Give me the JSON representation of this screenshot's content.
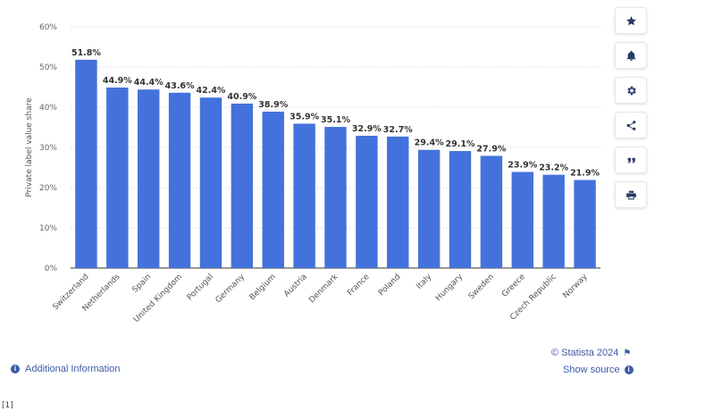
{
  "chart_data": {
    "type": "bar",
    "ylabel": "Private label value share",
    "xlabel": "",
    "ylim": [
      0,
      60
    ],
    "yticks": [
      "0%",
      "10%",
      "20%",
      "30%",
      "40%",
      "50%",
      "60%"
    ],
    "ytick_values": [
      0,
      10,
      20,
      30,
      40,
      50,
      60
    ],
    "grid": true,
    "bar_color": "#4472dc",
    "categories": [
      "Switzerland",
      "Netherlands",
      "Spain",
      "United Kingdom",
      "Portugal",
      "Germany",
      "Belgium",
      "Austria",
      "Denmark",
      "France",
      "Poland",
      "Italy",
      "Hungary",
      "Sweden",
      "Greece",
      "Czech Republic",
      "Norway"
    ],
    "values": [
      51.8,
      44.9,
      44.4,
      43.6,
      42.4,
      40.9,
      38.9,
      35.9,
      35.1,
      32.9,
      32.7,
      29.4,
      29.1,
      27.9,
      23.9,
      23.2,
      21.9
    ],
    "data_labels": [
      "51.8%",
      "44.9%",
      "44.4%",
      "43.6%",
      "42.4%",
      "40.9%",
      "38.9%",
      "35.9%",
      "35.1%",
      "32.9%",
      "32.7%",
      "29.4%",
      "29.1%",
      "27.9%",
      "23.9%",
      "23.2%",
      "21.9%"
    ]
  },
  "toolbar": {
    "icons": [
      "star-icon",
      "bell-icon",
      "gear-icon",
      "share-icon",
      "quote-icon",
      "print-icon"
    ]
  },
  "footer": {
    "additional_info": "Additional Information",
    "credit": "© Statista 2024",
    "show_source": "Show source",
    "bottom_mark": "[1]"
  }
}
